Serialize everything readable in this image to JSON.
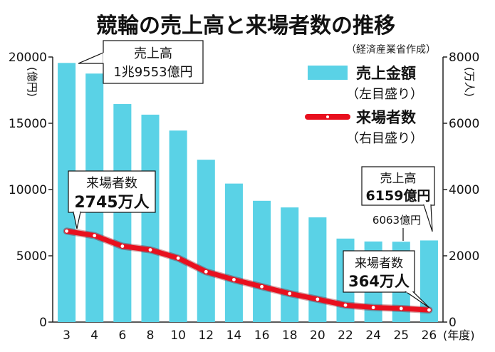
{
  "chart_data": {
    "type": "bar",
    "title": "競輪の売上高と来場者数の推移",
    "source": "（経済産業省作成）",
    "xlabel": "",
    "x_unit": "(年度)",
    "categories": [
      "3",
      "4",
      "6",
      "8",
      "10",
      "12",
      "14",
      "16",
      "18",
      "20",
      "22",
      "24",
      "25",
      "26"
    ],
    "y_left": {
      "unit": "(億円)",
      "ylim": [
        0,
        20000
      ],
      "ticks": [
        "0",
        "5000",
        "10000",
        "15000",
        "20000"
      ]
    },
    "y_right": {
      "unit": "(万人)",
      "ylim": [
        0,
        8000
      ],
      "ticks": [
        "0",
        "2000",
        "4000",
        "6000",
        "8000"
      ]
    },
    "series": [
      {
        "name": "売上金額",
        "name_note": "（左目盛り）",
        "type": "bar",
        "axis": "left",
        "color": "#5ad2e6",
        "values": [
          19553,
          18750,
          16450,
          15650,
          14450,
          12250,
          10450,
          9150,
          8650,
          7900,
          6300,
          6080,
          6063,
          6159
        ]
      },
      {
        "name": "来場者数",
        "name_note": "（右目盛り）",
        "type": "line",
        "axis": "right",
        "color": "#e8101e",
        "values": [
          2745,
          2610,
          2290,
          2180,
          1930,
          1520,
          1280,
          1070,
          860,
          690,
          510,
          440,
          410,
          364
        ]
      }
    ],
    "annotations": [
      {
        "kind": "sales",
        "label": "売上高",
        "value": "1兆9553億円",
        "category": "3"
      },
      {
        "kind": "visitors",
        "label": "来場者数",
        "value": "2745万人",
        "category": "3"
      },
      {
        "kind": "sales",
        "label": "売上高",
        "value": "6159億円",
        "category": "26"
      },
      {
        "kind": "sales_plain",
        "label": "",
        "value": "6063億円",
        "category": "25"
      },
      {
        "kind": "visitors",
        "label": "来場者数",
        "value": "364万人",
        "category": "26"
      }
    ],
    "grid": false,
    "legend": "top-right"
  }
}
